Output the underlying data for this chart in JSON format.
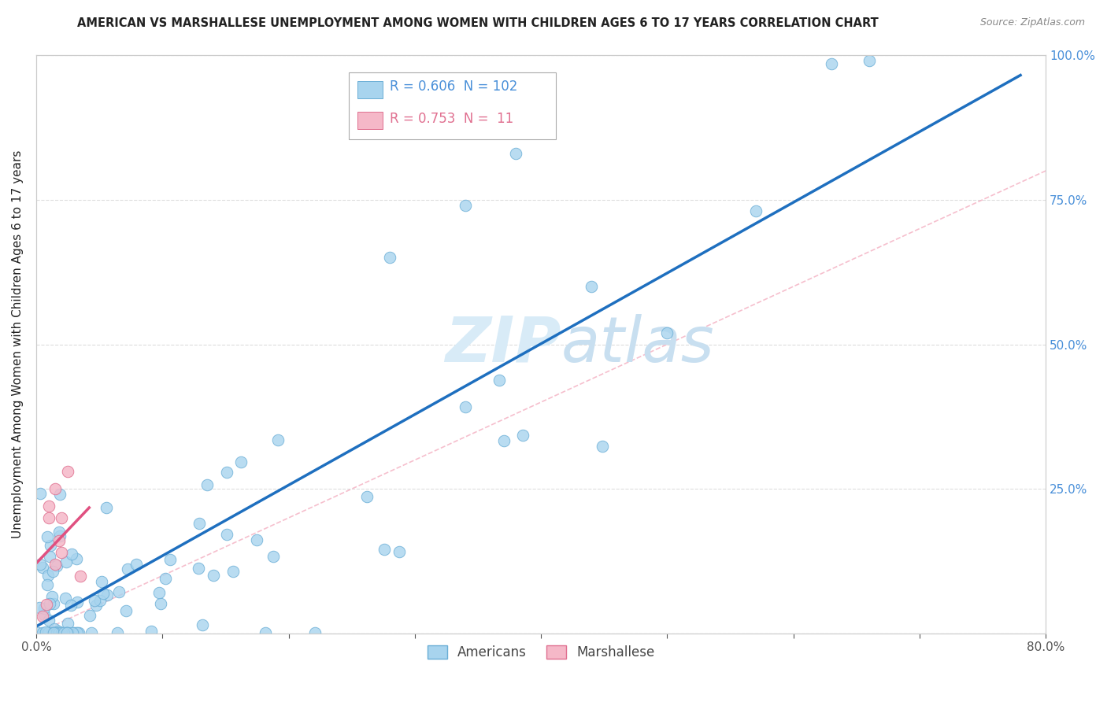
{
  "title": "AMERICAN VS MARSHALLESE UNEMPLOYMENT AMONG WOMEN WITH CHILDREN AGES 6 TO 17 YEARS CORRELATION CHART",
  "source": "Source: ZipAtlas.com",
  "ylabel": "Unemployment Among Women with Children Ages 6 to 17 years",
  "xlim": [
    0,
    0.8
  ],
  "ylim": [
    0,
    1.0
  ],
  "legend_R_american": "0.606",
  "legend_N_american": "102",
  "legend_R_marshallese": "0.753",
  "legend_N_marshallese": " 11",
  "american_color": "#A8D4EE",
  "american_edge_color": "#6AAED6",
  "marshallese_color": "#F5B8C8",
  "marshallese_edge_color": "#E07090",
  "american_line_color": "#1E6FBF",
  "marshallese_line_color": "#E05080",
  "diag_color": "#F5B8C8",
  "watermark_zip": "ZIP",
  "watermark_atlas": "atlas",
  "watermark_color": "#D8EBF7",
  "background_color": "#FFFFFF",
  "grid_color": "#DDDDDD",
  "right_tick_color": "#4A90D9",
  "legend_blue_color": "#4A90D9",
  "legend_pink_color": "#E07090",
  "title_color": "#222222",
  "source_color": "#888888",
  "ylabel_color": "#222222",
  "tick_color": "#555555"
}
